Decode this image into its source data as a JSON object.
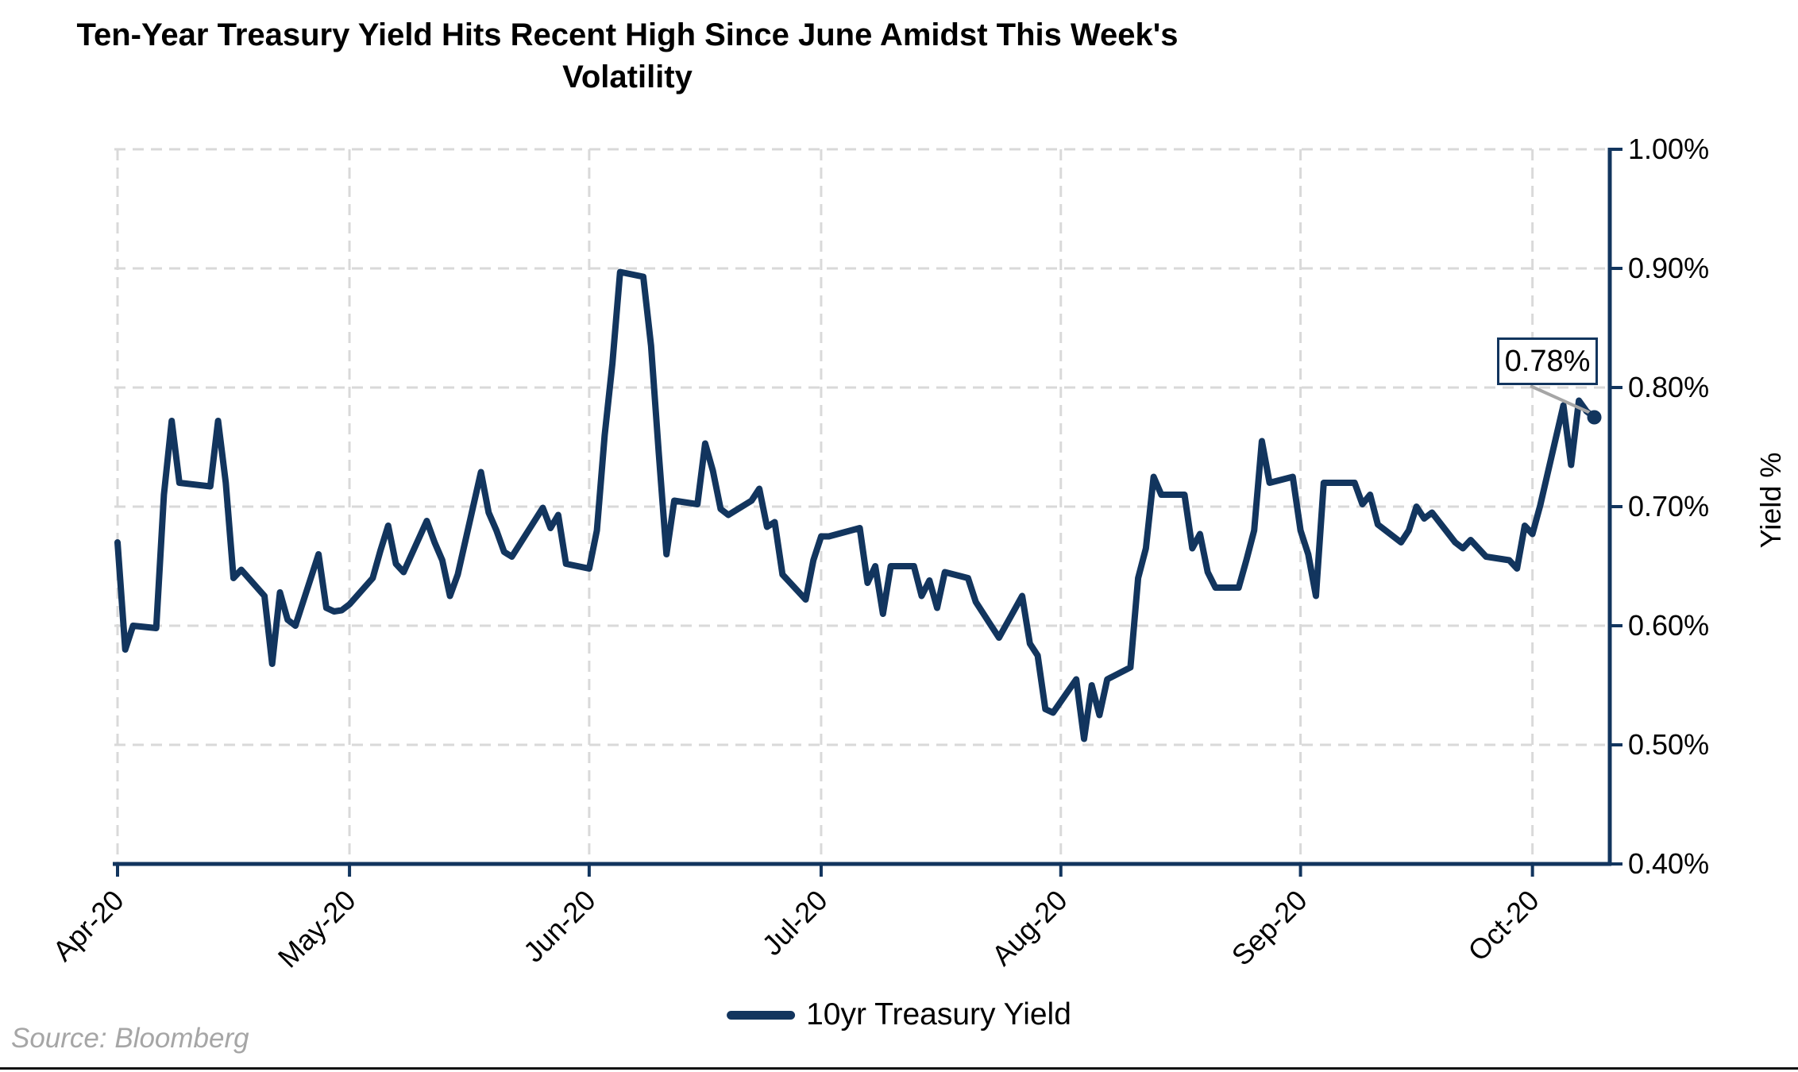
{
  "title": "Ten-Year Treasury Yield Hits Recent High Since June Amidst This Week's Volatility",
  "source": "Source: Bloomberg",
  "legend": {
    "label": "10yr Treasury Yield"
  },
  "annotation": {
    "label": "0.78%"
  },
  "colors": {
    "line": "#12355e",
    "axis": "#12355e",
    "grid": "#d9d9d9",
    "leader": "#a6a6a6",
    "text": "#000000",
    "source_text": "#a6a6a6",
    "background": "#ffffff"
  },
  "chart_data": {
    "type": "line",
    "title": "Ten-Year Treasury Yield Hits Recent High Since June Amidst This Week's Volatility",
    "xlabel": "",
    "ylabel": "Yield %",
    "ylim": [
      0.4,
      1.0
    ],
    "x_domain": [
      "2020-04-01",
      "2020-10-11"
    ],
    "grid": "dashed",
    "legend_position": "bottom-center",
    "y_ticks": [
      {
        "label": "1.00%",
        "value": 1.0
      },
      {
        "label": "0.90%",
        "value": 0.9
      },
      {
        "label": "0.80%",
        "value": 0.8
      },
      {
        "label": "0.70%",
        "value": 0.7
      },
      {
        "label": "0.60%",
        "value": 0.6
      },
      {
        "label": "0.50%",
        "value": 0.5
      },
      {
        "label": "0.40%",
        "value": 0.4
      }
    ],
    "x_ticks": [
      {
        "label": "Apr-20",
        "date": "2020-04-01"
      },
      {
        "label": "May-20",
        "date": "2020-05-01"
      },
      {
        "label": "Jun-20",
        "date": "2020-06-01"
      },
      {
        "label": "Jul-20",
        "date": "2020-07-01"
      },
      {
        "label": "Aug-20",
        "date": "2020-08-01"
      },
      {
        "label": "Sep-20",
        "date": "2020-09-01"
      },
      {
        "label": "Oct-20",
        "date": "2020-10-01"
      }
    ],
    "annotation": {
      "label": "0.78%",
      "attached_to": "last-point"
    },
    "series": [
      {
        "name": "10yr Treasury Yield",
        "unit": "percent",
        "dates": [
          "2020-04-01",
          "2020-04-02",
          "2020-04-03",
          "2020-04-06",
          "2020-04-07",
          "2020-04-08",
          "2020-04-09",
          "2020-04-13",
          "2020-04-14",
          "2020-04-15",
          "2020-04-16",
          "2020-04-17",
          "2020-04-20",
          "2020-04-21",
          "2020-04-22",
          "2020-04-23",
          "2020-04-24",
          "2020-04-27",
          "2020-04-28",
          "2020-04-29",
          "2020-04-30",
          "2020-05-01",
          "2020-05-04",
          "2020-05-05",
          "2020-05-06",
          "2020-05-07",
          "2020-05-08",
          "2020-05-11",
          "2020-05-12",
          "2020-05-13",
          "2020-05-14",
          "2020-05-15",
          "2020-05-18",
          "2020-05-19",
          "2020-05-20",
          "2020-05-21",
          "2020-05-22",
          "2020-05-26",
          "2020-05-27",
          "2020-05-28",
          "2020-05-29",
          "2020-06-01",
          "2020-06-02",
          "2020-06-03",
          "2020-06-04",
          "2020-06-05",
          "2020-06-08",
          "2020-06-09",
          "2020-06-10",
          "2020-06-11",
          "2020-06-12",
          "2020-06-15",
          "2020-06-16",
          "2020-06-17",
          "2020-06-18",
          "2020-06-19",
          "2020-06-22",
          "2020-06-23",
          "2020-06-24",
          "2020-06-25",
          "2020-06-26",
          "2020-06-29",
          "2020-06-30",
          "2020-07-01",
          "2020-07-02",
          "2020-07-06",
          "2020-07-07",
          "2020-07-08",
          "2020-07-09",
          "2020-07-10",
          "2020-07-13",
          "2020-07-14",
          "2020-07-15",
          "2020-07-16",
          "2020-07-17",
          "2020-07-20",
          "2020-07-21",
          "2020-07-22",
          "2020-07-23",
          "2020-07-24",
          "2020-07-27",
          "2020-07-28",
          "2020-07-29",
          "2020-07-30",
          "2020-07-31",
          "2020-08-03",
          "2020-08-04",
          "2020-08-05",
          "2020-08-06",
          "2020-08-07",
          "2020-08-10",
          "2020-08-11",
          "2020-08-12",
          "2020-08-13",
          "2020-08-14",
          "2020-08-17",
          "2020-08-18",
          "2020-08-19",
          "2020-08-20",
          "2020-08-21",
          "2020-08-24",
          "2020-08-25",
          "2020-08-26",
          "2020-08-27",
          "2020-08-28",
          "2020-08-31",
          "2020-09-01",
          "2020-09-02",
          "2020-09-03",
          "2020-09-04",
          "2020-09-08",
          "2020-09-09",
          "2020-09-10",
          "2020-09-11",
          "2020-09-14",
          "2020-09-15",
          "2020-09-16",
          "2020-09-17",
          "2020-09-18",
          "2020-09-21",
          "2020-09-22",
          "2020-09-23",
          "2020-09-24",
          "2020-09-25",
          "2020-09-28",
          "2020-09-29",
          "2020-09-30",
          "2020-10-01",
          "2020-10-02",
          "2020-10-05",
          "2020-10-06",
          "2020-10-07",
          "2020-10-08",
          "2020-10-09"
        ],
        "values": [
          0.67,
          0.58,
          0.6,
          0.598,
          0.71,
          0.772,
          0.72,
          0.717,
          0.772,
          0.72,
          0.64,
          0.647,
          0.625,
          0.568,
          0.628,
          0.605,
          0.6,
          0.66,
          0.615,
          0.612,
          0.613,
          0.618,
          0.64,
          0.663,
          0.684,
          0.652,
          0.645,
          0.688,
          0.67,
          0.655,
          0.625,
          0.643,
          0.729,
          0.695,
          0.68,
          0.662,
          0.658,
          0.699,
          0.682,
          0.693,
          0.652,
          0.648,
          0.68,
          0.76,
          0.82,
          0.897,
          0.893,
          0.835,
          0.745,
          0.66,
          0.705,
          0.702,
          0.753,
          0.73,
          0.698,
          0.693,
          0.705,
          0.715,
          0.683,
          0.687,
          0.643,
          0.622,
          0.655,
          0.675,
          0.675,
          0.682,
          0.636,
          0.65,
          0.61,
          0.65,
          0.65,
          0.625,
          0.638,
          0.615,
          0.645,
          0.64,
          0.62,
          0.61,
          0.6,
          0.59,
          0.625,
          0.585,
          0.575,
          0.53,
          0.527,
          0.555,
          0.505,
          0.55,
          0.525,
          0.555,
          0.565,
          0.64,
          0.665,
          0.725,
          0.71,
          0.71,
          0.665,
          0.677,
          0.645,
          0.632,
          0.632,
          0.655,
          0.68,
          0.755,
          0.72,
          0.725,
          0.68,
          0.66,
          0.625,
          0.72,
          0.72,
          0.702,
          0.71,
          0.685,
          0.67,
          0.68,
          0.7,
          0.69,
          0.695,
          0.67,
          0.665,
          0.672,
          0.665,
          0.658,
          0.655,
          0.648,
          0.684,
          0.677,
          0.701,
          0.785,
          0.735,
          0.789,
          0.78,
          0.775
        ]
      }
    ]
  }
}
